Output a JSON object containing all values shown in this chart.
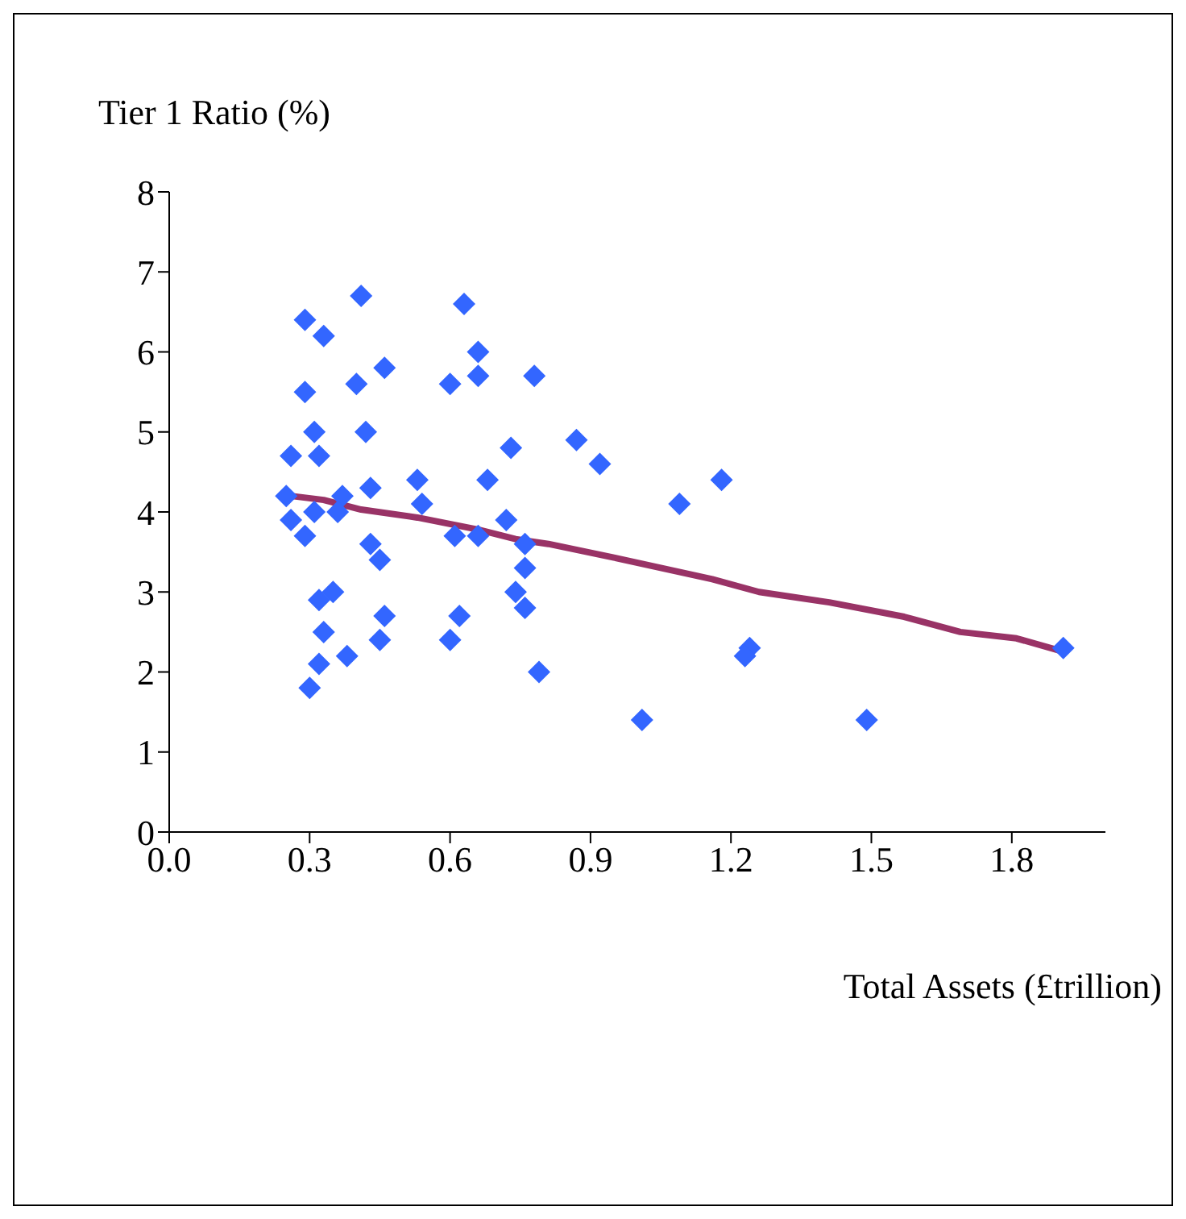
{
  "chart_data": {
    "type": "scatter",
    "xlabel": "Total Assets (£trillion)",
    "ylabel": "Tier 1 Ratio (%)",
    "xlim": [
      0,
      2.0
    ],
    "xticks": [
      {
        "value": 0,
        "label": "0.0"
      },
      {
        "value": 0.3,
        "label": "0.3"
      },
      {
        "value": 0.6,
        "label": "0.6"
      },
      {
        "value": 0.9,
        "label": "0.9"
      },
      {
        "value": 1.2,
        "label": "1.2"
      },
      {
        "value": 1.5,
        "label": "1.5"
      },
      {
        "value": 1.8,
        "label": "1.8"
      }
    ],
    "ylim": [
      0,
      8
    ],
    "yticks": [
      0,
      1,
      2,
      3,
      4,
      5,
      6,
      7,
      8
    ],
    "grid": false,
    "legend": false,
    "series": [
      {
        "marker": "diamond",
        "color": "#3366ff",
        "x": [
          0.29,
          0.33,
          0.41,
          0.29,
          0.4,
          0.46,
          0.6,
          0.63,
          0.66,
          0.66,
          0.31,
          0.32,
          0.26,
          0.42,
          0.25,
          0.26,
          0.31,
          0.29,
          0.37,
          0.36,
          0.43,
          0.53,
          0.54,
          0.61,
          0.43,
          0.45,
          0.32,
          0.35,
          0.33,
          0.32,
          0.3,
          0.38,
          0.46,
          0.45,
          0.62,
          0.6,
          0.66,
          0.68,
          0.73,
          0.72,
          0.76,
          0.76,
          0.74,
          0.76,
          0.79,
          0.87,
          0.92,
          0.78,
          1.09,
          1.18,
          1.24,
          1.23,
          1.01,
          1.49,
          1.91
        ],
        "values": [
          6.4,
          6.2,
          6.7,
          5.5,
          5.6,
          5.8,
          5.6,
          6.6,
          6.0,
          5.7,
          5.0,
          4.7,
          4.7,
          5.0,
          4.2,
          3.9,
          4.0,
          3.7,
          4.2,
          4.0,
          4.3,
          4.4,
          4.1,
          3.7,
          3.6,
          3.4,
          2.9,
          3.0,
          2.5,
          2.1,
          1.8,
          2.2,
          2.7,
          2.4,
          2.7,
          2.4,
          3.7,
          4.4,
          4.8,
          3.9,
          3.6,
          3.3,
          3.0,
          2.8,
          2.0,
          4.9,
          4.6,
          5.7,
          4.1,
          4.4,
          2.3,
          2.2,
          1.4,
          1.4,
          2.3
        ]
      },
      {
        "type": "line",
        "marker": "none",
        "color": "#993366",
        "x": [
          0.26,
          0.33,
          0.41,
          0.53,
          0.66,
          0.74,
          0.81,
          0.95,
          1.16,
          1.26,
          1.41,
          1.57,
          1.69,
          1.81,
          1.9
        ],
        "values": [
          4.2,
          4.15,
          4.03,
          3.93,
          3.78,
          3.66,
          3.6,
          3.43,
          3.16,
          3.0,
          2.87,
          2.69,
          2.5,
          2.42,
          2.27
        ]
      }
    ]
  }
}
